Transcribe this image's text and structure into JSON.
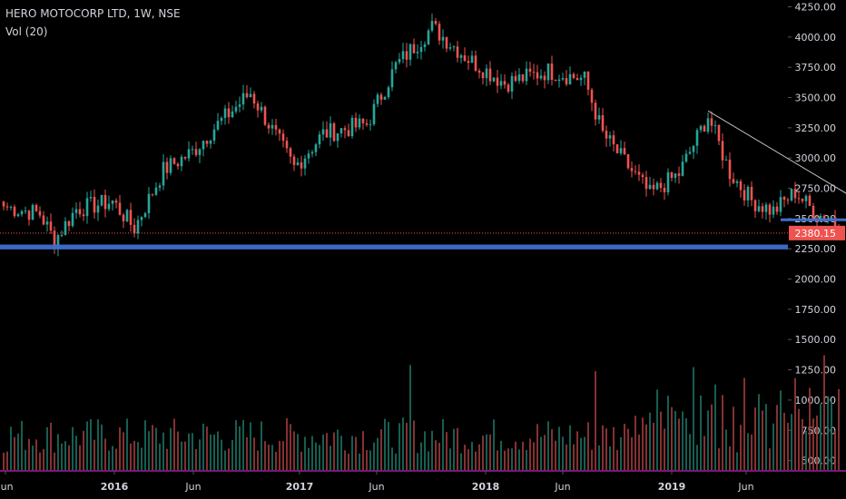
{
  "chart_data": {
    "type": "candlestick",
    "title": "HERO MOTOCORP LTD, 1W, NSE",
    "volume_label": "Vol (20)",
    "ylim": [
      380,
      4280
    ],
    "y_ticks": [
      "4250.00",
      "4000.00",
      "3750.00",
      "3500.00",
      "3250.00",
      "3000.00",
      "2750.00",
      "2500.00",
      "2250.00",
      "2000.00",
      "1750.00",
      "1500.00",
      "1250.00",
      "1000.00",
      "750.00",
      "500.00"
    ],
    "x_ticks": [
      "Jun",
      "2016",
      "Jun",
      "2017",
      "Jun",
      "2018",
      "Jun",
      "2019",
      "Jun"
    ],
    "last_price": "2380.15",
    "last_price_value": 2380.15,
    "support_zone": [
      2245,
      2285
    ],
    "support_short": {
      "value": 2490,
      "from_week": 214,
      "to_week": 230
    },
    "trendline": {
      "from_week": 194,
      "from_value": 3390,
      "to_week": 230,
      "to_value": 2700
    },
    "colors": {
      "up": "#26a69a",
      "down": "#ef5350",
      "up_volume": "#1b6e60",
      "down_volume": "#9c3a3a",
      "support": "#3d6fcf",
      "trendline": "#c0c0c0",
      "price_line": "#ef5350",
      "axis_text": "#d1d4dc",
      "bottom_line": "#a020a0"
    },
    "anchors": [
      [
        0,
        2600
      ],
      [
        10,
        2540
      ],
      [
        14,
        2320
      ],
      [
        20,
        2580
      ],
      [
        30,
        2640
      ],
      [
        36,
        2420
      ],
      [
        44,
        2900
      ],
      [
        52,
        3050
      ],
      [
        58,
        3250
      ],
      [
        68,
        3540
      ],
      [
        80,
        2920
      ],
      [
        88,
        3200
      ],
      [
        100,
        3280
      ],
      [
        108,
        3760
      ],
      [
        118,
        4080
      ],
      [
        128,
        3820
      ],
      [
        138,
        3620
      ],
      [
        150,
        3720
      ],
      [
        160,
        3650
      ],
      [
        165,
        3200
      ],
      [
        178,
        2700
      ],
      [
        186,
        2870
      ],
      [
        194,
        3350
      ],
      [
        200,
        2880
      ],
      [
        206,
        2650
      ],
      [
        212,
        2560
      ],
      [
        218,
        2720
      ],
      [
        224,
        2530
      ],
      [
        228,
        2510
      ],
      [
        230,
        2380
      ]
    ],
    "series_note": ""
  }
}
